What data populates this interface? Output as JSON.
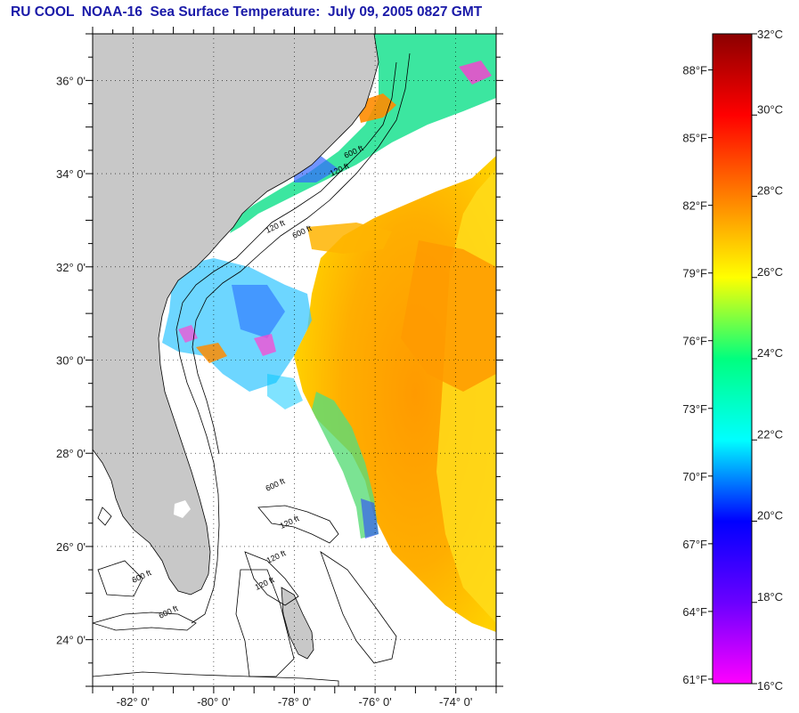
{
  "title": "RU COOL  NOAA-16  Sea Surface Temperature:  July 09, 2005 0827 GMT",
  "map": {
    "lon_range": [
      -83,
      -73
    ],
    "lat_range": [
      23,
      37
    ],
    "lat_ticks": [
      {
        "lat": 36,
        "label": "36° 0'"
      },
      {
        "lat": 34,
        "label": "34° 0'"
      },
      {
        "lat": 32,
        "label": "32° 0'"
      },
      {
        "lat": 30,
        "label": "30° 0'"
      },
      {
        "lat": 28,
        "label": "28° 0'"
      },
      {
        "lat": 26,
        "label": "26° 0'"
      },
      {
        "lat": 24,
        "label": "24° 0'"
      }
    ],
    "lon_ticks": [
      {
        "lon": -82,
        "label": "-82° 0'"
      },
      {
        "lon": -80,
        "label": "-80° 0'"
      },
      {
        "lon": -78,
        "label": "-78° 0'"
      },
      {
        "lon": -76,
        "label": "-76° 0'"
      },
      {
        "lon": -74,
        "label": "-74° 0'"
      }
    ],
    "contour_labels": [
      "120 ft",
      "600 ft",
      "120 ft",
      "600 ft",
      "600 ft",
      "120 ft",
      "120 ft",
      "120 ft",
      "600 ft",
      "600 ft"
    ],
    "colors": {
      "land": "#c8c8c8",
      "cloud": "#ffffff",
      "frame": "#000000"
    }
  },
  "colorbar": {
    "celsius": [
      {
        "value": 32,
        "label": "32°C"
      },
      {
        "value": 30,
        "label": "30°C"
      },
      {
        "value": 28,
        "label": "28°C"
      },
      {
        "value": 26,
        "label": "26°C"
      },
      {
        "value": 24,
        "label": "24°C"
      },
      {
        "value": 22,
        "label": "22°C"
      },
      {
        "value": 20,
        "label": "20°C"
      },
      {
        "value": 18,
        "label": "18°C"
      },
      {
        "value": 16,
        "label": "16°C"
      }
    ],
    "fahrenheit": [
      {
        "value": 88,
        "label": "88°F"
      },
      {
        "value": 85,
        "label": "85°F"
      },
      {
        "value": 82,
        "label": "82°F"
      },
      {
        "value": 79,
        "label": "79°F"
      },
      {
        "value": 76,
        "label": "76°F"
      },
      {
        "value": 73,
        "label": "73°F"
      },
      {
        "value": 70,
        "label": "70°F"
      },
      {
        "value": 67,
        "label": "67°F"
      },
      {
        "value": 64,
        "label": "64°F"
      },
      {
        "value": 61,
        "label": "61°F"
      }
    ],
    "range_c": [
      16,
      32
    ],
    "palette": [
      "#8b0000",
      "#ff0000",
      "#ff7f00",
      "#ffff00",
      "#00ff7f",
      "#00ffff",
      "#0000ff",
      "#6a00ff",
      "#ff00ff"
    ]
  }
}
